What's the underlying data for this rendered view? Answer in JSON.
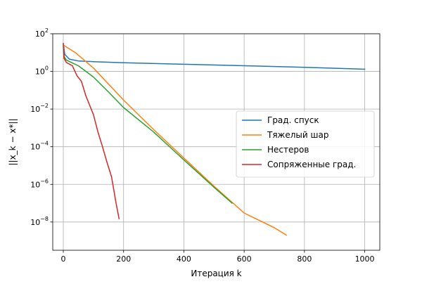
{
  "chart_data": {
    "type": "line",
    "title": "",
    "xlabel": "Итерация k",
    "ylabel": "||x_k − x*||",
    "xlim": [
      -35,
      1050
    ],
    "ylim_log10": [
      -9.5,
      2
    ],
    "yscale": "log",
    "grid": true,
    "legend_position": "center-right",
    "x_ticks": [
      0,
      200,
      400,
      600,
      800,
      1000
    ],
    "y_ticks": [
      {
        "exp": 2,
        "base": "10",
        "sup": "2"
      },
      {
        "exp": 0,
        "base": "10",
        "sup": "0"
      },
      {
        "exp": -2,
        "base": "10",
        "sup": "−2"
      },
      {
        "exp": -4,
        "base": "10",
        "sup": "−4"
      },
      {
        "exp": -6,
        "base": "10",
        "sup": "−6"
      },
      {
        "exp": -8,
        "base": "10",
        "sup": "−8"
      }
    ],
    "series": [
      {
        "name": "Град. спуск",
        "color": "#1f77b4",
        "points": [
          [
            0,
            30
          ],
          [
            5,
            8
          ],
          [
            20,
            4.5
          ],
          [
            50,
            3.6
          ],
          [
            100,
            3.3
          ],
          [
            200,
            2.9
          ],
          [
            400,
            2.4
          ],
          [
            600,
            2.0
          ],
          [
            800,
            1.65
          ],
          [
            1000,
            1.3
          ]
        ]
      },
      {
        "name": "Тяжелый шар",
        "color": "#ff7f0e",
        "points": [
          [
            0,
            25
          ],
          [
            40,
            10
          ],
          [
            100,
            1.5
          ],
          [
            200,
            0.03
          ],
          [
            300,
            0.0008
          ],
          [
            400,
            2.5e-05
          ],
          [
            500,
            8e-07
          ],
          [
            600,
            3e-08
          ],
          [
            700,
            5e-09
          ],
          [
            740,
            2e-09
          ]
        ]
      },
      {
        "name": "Нестеров",
        "color": "#2ca02c",
        "points": [
          [
            0,
            20
          ],
          [
            3,
            6
          ],
          [
            10,
            4
          ],
          [
            30,
            2.8
          ],
          [
            50,
            2.0
          ],
          [
            100,
            0.5
          ],
          [
            150,
            0.08
          ],
          [
            200,
            0.012
          ],
          [
            300,
            0.0006
          ],
          [
            400,
            2e-05
          ],
          [
            500,
            7e-07
          ],
          [
            560,
            1e-07
          ]
        ]
      },
      {
        "name": "Сопряженные град.",
        "color": "#d62728",
        "points": [
          [
            0,
            30
          ],
          [
            2,
            5
          ],
          [
            10,
            3
          ],
          [
            30,
            2
          ],
          [
            45,
            0.6
          ],
          [
            60,
            0.3
          ],
          [
            75,
            0.05
          ],
          [
            100,
            0.005
          ],
          [
            115,
            0.0006
          ],
          [
            130,
            0.0001
          ],
          [
            145,
            1.5e-05
          ],
          [
            160,
            2.5e-06
          ],
          [
            175,
            1e-07
          ],
          [
            185,
            1.5e-08
          ]
        ]
      }
    ]
  }
}
